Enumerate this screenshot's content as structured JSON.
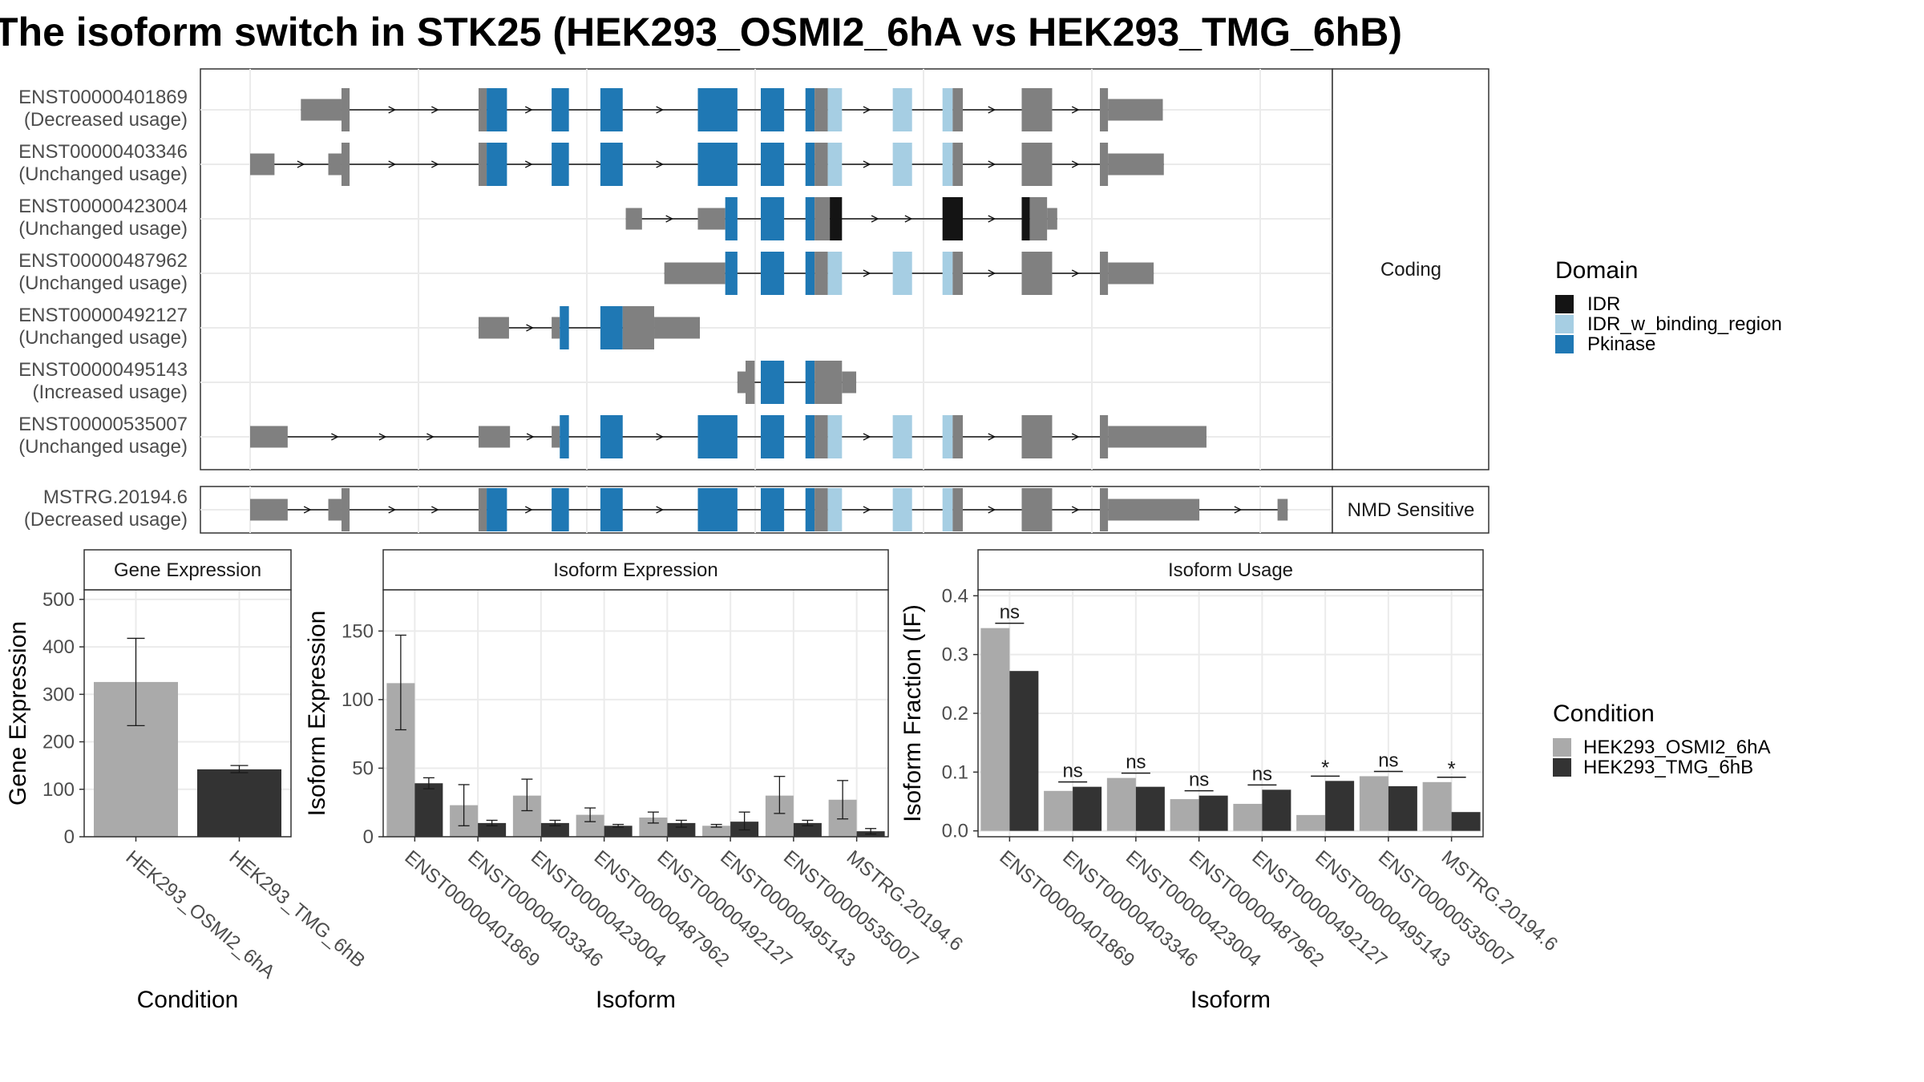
{
  "title": "The isoform switch in STK25 (HEK293_OSMI2_6hA vs HEK293_TMG_6hB)",
  "colors": {
    "exon": "#808080",
    "IDR": "#141414",
    "IDR_w_binding_region": "#A6CEE3",
    "Pkinase": "#1F78B4",
    "cond1": "#AAAAAA",
    "cond2": "#333333",
    "grid": "#EBEBEB",
    "axis": "#4D4D4D"
  },
  "structure": {
    "panels": [
      {
        "label": "Coding",
        "rows": [
          0,
          1,
          2,
          3,
          4,
          5,
          6
        ]
      },
      {
        "label": "NMD Sensitive",
        "rows": [
          7
        ]
      }
    ],
    "domain_legend": {
      "title": "Domain",
      "items": [
        {
          "name": "IDR",
          "color": "#141414"
        },
        {
          "name": "IDR_w_binding_region",
          "color": "#A6CEE3"
        },
        {
          "name": "Pkinase",
          "color": "#1F78B4"
        }
      ]
    },
    "x_range": [
      0,
      1000
    ],
    "transcripts": [
      {
        "id": "ENST00000401869",
        "status": "(Decreased usage)",
        "exons": [
          {
            "s": 50,
            "e": 90,
            "t": "utr"
          },
          {
            "s": 90,
            "e": 98,
            "t": "cds"
          },
          {
            "s": 225,
            "e": 233,
            "t": "cds"
          },
          {
            "s": 233,
            "e": 253,
            "t": "Pkinase"
          },
          {
            "s": 297,
            "e": 314,
            "t": "Pkinase"
          },
          {
            "s": 345,
            "e": 367,
            "t": "Pkinase"
          },
          {
            "s": 441,
            "e": 480,
            "t": "Pkinase"
          },
          {
            "s": 503,
            "e": 526,
            "t": "Pkinase"
          },
          {
            "s": 547,
            "e": 556,
            "t": "Pkinase"
          },
          {
            "s": 556,
            "e": 569,
            "t": "cds"
          },
          {
            "s": 569,
            "e": 583,
            "t": "IDR_w_binding_region"
          },
          {
            "s": 633,
            "e": 652,
            "t": "IDR_w_binding_region"
          },
          {
            "s": 682,
            "e": 692,
            "t": "IDR_w_binding_region"
          },
          {
            "s": 692,
            "e": 702,
            "t": "cds"
          },
          {
            "s": 760,
            "e": 790,
            "t": "cds"
          },
          {
            "s": 837,
            "e": 845,
            "t": "cds"
          },
          {
            "s": 845,
            "e": 899,
            "t": "utr"
          }
        ]
      },
      {
        "id": "ENST00000403346",
        "status": "(Unchanged usage)",
        "exons": [
          {
            "s": 0,
            "e": 24,
            "t": "utr"
          },
          {
            "s": 77,
            "e": 90,
            "t": "utr"
          },
          {
            "s": 90,
            "e": 98,
            "t": "cds"
          },
          {
            "s": 225,
            "e": 233,
            "t": "cds"
          },
          {
            "s": 233,
            "e": 253,
            "t": "Pkinase"
          },
          {
            "s": 297,
            "e": 314,
            "t": "Pkinase"
          },
          {
            "s": 345,
            "e": 367,
            "t": "Pkinase"
          },
          {
            "s": 441,
            "e": 480,
            "t": "Pkinase"
          },
          {
            "s": 503,
            "e": 526,
            "t": "Pkinase"
          },
          {
            "s": 547,
            "e": 556,
            "t": "Pkinase"
          },
          {
            "s": 556,
            "e": 569,
            "t": "cds"
          },
          {
            "s": 569,
            "e": 583,
            "t": "IDR_w_binding_region"
          },
          {
            "s": 633,
            "e": 652,
            "t": "IDR_w_binding_region"
          },
          {
            "s": 682,
            "e": 692,
            "t": "IDR_w_binding_region"
          },
          {
            "s": 692,
            "e": 702,
            "t": "cds"
          },
          {
            "s": 760,
            "e": 790,
            "t": "cds"
          },
          {
            "s": 837,
            "e": 845,
            "t": "cds"
          },
          {
            "s": 845,
            "e": 900,
            "t": "utr"
          }
        ]
      },
      {
        "id": "ENST00000423004",
        "status": "(Unchanged usage)",
        "exons": [
          {
            "s": 370,
            "e": 386,
            "t": "utr"
          },
          {
            "s": 441,
            "e": 468,
            "t": "utr"
          },
          {
            "s": 468,
            "e": 480,
            "t": "Pkinase"
          },
          {
            "s": 503,
            "e": 526,
            "t": "Pkinase"
          },
          {
            "s": 547,
            "e": 556,
            "t": "Pkinase"
          },
          {
            "s": 556,
            "e": 571,
            "t": "cds"
          },
          {
            "s": 571,
            "e": 583,
            "t": "IDR"
          },
          {
            "s": 682,
            "e": 702,
            "t": "IDR"
          },
          {
            "s": 760,
            "e": 768,
            "t": "IDR"
          },
          {
            "s": 768,
            "e": 785,
            "t": "cds"
          },
          {
            "s": 785,
            "e": 795,
            "t": "utr"
          }
        ]
      },
      {
        "id": "ENST00000487962",
        "status": "(Unchanged usage)",
        "exons": [
          {
            "s": 408,
            "e": 468,
            "t": "utr"
          },
          {
            "s": 468,
            "e": 480,
            "t": "Pkinase"
          },
          {
            "s": 503,
            "e": 526,
            "t": "Pkinase"
          },
          {
            "s": 547,
            "e": 556,
            "t": "Pkinase"
          },
          {
            "s": 556,
            "e": 569,
            "t": "cds"
          },
          {
            "s": 569,
            "e": 583,
            "t": "IDR_w_binding_region"
          },
          {
            "s": 633,
            "e": 652,
            "t": "IDR_w_binding_region"
          },
          {
            "s": 682,
            "e": 692,
            "t": "IDR_w_binding_region"
          },
          {
            "s": 692,
            "e": 702,
            "t": "cds"
          },
          {
            "s": 760,
            "e": 790,
            "t": "cds"
          },
          {
            "s": 837,
            "e": 845,
            "t": "cds"
          },
          {
            "s": 845,
            "e": 890,
            "t": "utr"
          }
        ]
      },
      {
        "id": "ENST00000492127",
        "status": "(Unchanged usage)",
        "exons": [
          {
            "s": 225,
            "e": 255,
            "t": "utr"
          },
          {
            "s": 297,
            "e": 305,
            "t": "utr"
          },
          {
            "s": 305,
            "e": 314,
            "t": "Pkinase"
          },
          {
            "s": 345,
            "e": 367,
            "t": "Pkinase"
          },
          {
            "s": 367,
            "e": 398,
            "t": "cds"
          },
          {
            "s": 398,
            "e": 443,
            "t": "utr"
          }
        ]
      },
      {
        "id": "ENST00000495143",
        "status": "(Increased usage)",
        "exons": [
          {
            "s": 480,
            "e": 488,
            "t": "utr"
          },
          {
            "s": 488,
            "e": 497,
            "t": "cds"
          },
          {
            "s": 503,
            "e": 526,
            "t": "Pkinase"
          },
          {
            "s": 547,
            "e": 556,
            "t": "Pkinase"
          },
          {
            "s": 556,
            "e": 583,
            "t": "cds"
          },
          {
            "s": 583,
            "e": 597,
            "t": "utr"
          }
        ]
      },
      {
        "id": "ENST00000535007",
        "status": "(Unchanged usage)",
        "exons": [
          {
            "s": 0,
            "e": 37,
            "t": "utr"
          },
          {
            "s": 225,
            "e": 256,
            "t": "utr"
          },
          {
            "s": 297,
            "e": 305,
            "t": "utr"
          },
          {
            "s": 305,
            "e": 314,
            "t": "Pkinase"
          },
          {
            "s": 345,
            "e": 367,
            "t": "Pkinase"
          },
          {
            "s": 441,
            "e": 480,
            "t": "Pkinase"
          },
          {
            "s": 503,
            "e": 526,
            "t": "Pkinase"
          },
          {
            "s": 547,
            "e": 556,
            "t": "Pkinase"
          },
          {
            "s": 556,
            "e": 569,
            "t": "cds"
          },
          {
            "s": 569,
            "e": 583,
            "t": "IDR_w_binding_region"
          },
          {
            "s": 633,
            "e": 652,
            "t": "IDR_w_binding_region"
          },
          {
            "s": 682,
            "e": 692,
            "t": "IDR_w_binding_region"
          },
          {
            "s": 692,
            "e": 702,
            "t": "cds"
          },
          {
            "s": 760,
            "e": 790,
            "t": "cds"
          },
          {
            "s": 837,
            "e": 845,
            "t": "cds"
          },
          {
            "s": 845,
            "e": 942,
            "t": "utr"
          }
        ]
      },
      {
        "id": "MSTRG.20194.6",
        "status": "(Decreased usage)",
        "exons": [
          {
            "s": 0,
            "e": 37,
            "t": "utr"
          },
          {
            "s": 77,
            "e": 90,
            "t": "utr"
          },
          {
            "s": 90,
            "e": 98,
            "t": "cds"
          },
          {
            "s": 225,
            "e": 233,
            "t": "cds"
          },
          {
            "s": 233,
            "e": 253,
            "t": "Pkinase"
          },
          {
            "s": 297,
            "e": 314,
            "t": "Pkinase"
          },
          {
            "s": 345,
            "e": 367,
            "t": "Pkinase"
          },
          {
            "s": 441,
            "e": 480,
            "t": "Pkinase"
          },
          {
            "s": 503,
            "e": 526,
            "t": "Pkinase"
          },
          {
            "s": 547,
            "e": 556,
            "t": "Pkinase"
          },
          {
            "s": 556,
            "e": 569,
            "t": "cds"
          },
          {
            "s": 569,
            "e": 583,
            "t": "IDR_w_binding_region"
          },
          {
            "s": 633,
            "e": 652,
            "t": "IDR_w_binding_region"
          },
          {
            "s": 682,
            "e": 692,
            "t": "IDR_w_binding_region"
          },
          {
            "s": 692,
            "e": 702,
            "t": "cds"
          },
          {
            "s": 760,
            "e": 790,
            "t": "cds"
          },
          {
            "s": 837,
            "e": 845,
            "t": "cds"
          },
          {
            "s": 845,
            "e": 935,
            "t": "utr"
          },
          {
            "s": 1012,
            "e": 1022,
            "t": "utr"
          }
        ]
      }
    ]
  },
  "chart_data": [
    {
      "type": "bar",
      "title": "Gene Expression",
      "xlabel": "Condition",
      "ylabel": "Gene Expression",
      "ylim": [
        0,
        520
      ],
      "yticks": [
        0,
        100,
        200,
        300,
        400,
        500
      ],
      "categories": [
        "HEK293_OSMI2_6hA",
        "HEK293_TMG_6hB"
      ],
      "values": [
        326,
        142
      ],
      "error_low": [
        234,
        135
      ],
      "error_high": [
        418,
        150
      ]
    },
    {
      "type": "bar",
      "title": "Isoform Expression",
      "xlabel": "Isoform",
      "ylabel": "Isoform Expression",
      "ylim": [
        0,
        180
      ],
      "yticks": [
        0,
        50,
        100,
        150
      ],
      "categories": [
        "ENST00000401869",
        "ENST00000403346",
        "ENST00000423004",
        "ENST00000487962",
        "ENST00000492127",
        "ENST00000495143",
        "ENST00000535007",
        "MSTRG.20194.6"
      ],
      "series": [
        {
          "name": "HEK293_OSMI2_6hA",
          "values": [
            112,
            23,
            30,
            16,
            14,
            8,
            30,
            27
          ],
          "error_low": [
            78,
            8,
            19,
            11,
            10,
            7,
            17,
            13
          ],
          "error_high": [
            147,
            38,
            42,
            21,
            18,
            9,
            44,
            41
          ]
        },
        {
          "name": "HEK293_TMG_6hB",
          "values": [
            39,
            10,
            10,
            8,
            10,
            11,
            10,
            4
          ],
          "error_low": [
            35,
            8,
            8,
            7,
            7,
            5,
            8,
            2
          ],
          "error_high": [
            43,
            12,
            12,
            9,
            12,
            18,
            12,
            6
          ]
        }
      ]
    },
    {
      "type": "bar",
      "title": "Isoform Usage",
      "xlabel": "Isoform",
      "ylabel": "Isoform Fraction (IF)",
      "ylim": [
        -0.01,
        0.41
      ],
      "yticks": [
        "0.0",
        "0.1",
        "0.2",
        "0.3",
        "0.4"
      ],
      "categories": [
        "ENST00000401869",
        "ENST00000403346",
        "ENST00000423004",
        "ENST00000487962",
        "ENST00000492127",
        "ENST00000495143",
        "ENST00000535007",
        "MSTRG.20194.6"
      ],
      "series": [
        {
          "name": "HEK293_OSMI2_6hA",
          "values": [
            0.345,
            0.068,
            0.09,
            0.054,
            0.046,
            0.027,
            0.093,
            0.083
          ]
        },
        {
          "name": "HEK293_TMG_6hB",
          "values": [
            0.272,
            0.075,
            0.075,
            0.06,
            0.07,
            0.085,
            0.076,
            0.032
          ]
        }
      ],
      "significance": [
        "ns",
        "ns",
        "ns",
        "ns",
        "ns",
        "*",
        "ns",
        "*"
      ]
    }
  ],
  "condition_legend": {
    "title": "Condition",
    "items": [
      {
        "name": "HEK293_OSMI2_6hA",
        "color": "#AAAAAA"
      },
      {
        "name": "HEK293_TMG_6hB",
        "color": "#333333"
      }
    ]
  }
}
